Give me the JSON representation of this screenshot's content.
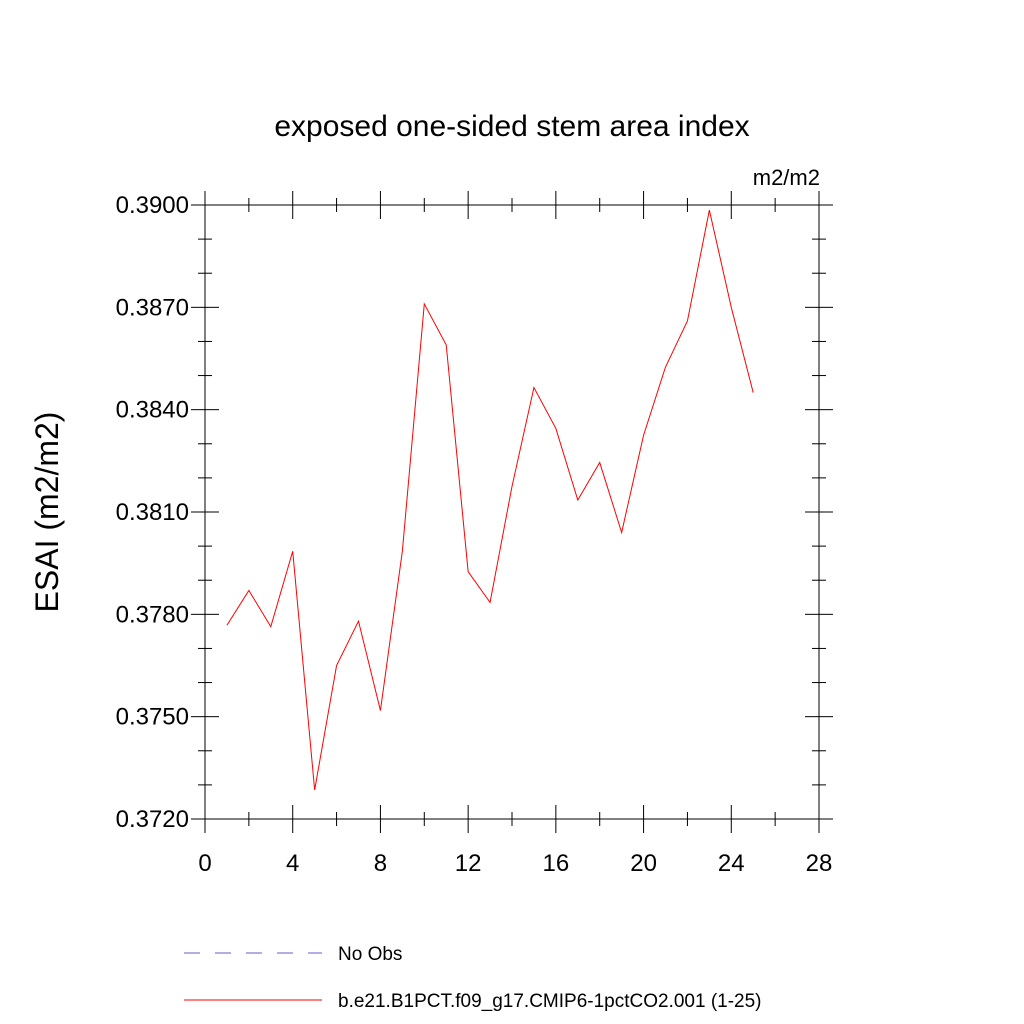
{
  "chart_data": {
    "type": "line",
    "title": "exposed one-sided stem area index",
    "units": "m2/m2",
    "ylabel": "ESAI  (m2/m2)",
    "xlabel": "",
    "xlim": [
      0,
      28
    ],
    "ylim": [
      0.372,
      0.39
    ],
    "x_ticks": [
      "0",
      "4",
      "8",
      "12",
      "16",
      "20",
      "24",
      "28"
    ],
    "y_ticks": [
      "0.3720",
      "0.3750",
      "0.3780",
      "0.3810",
      "0.3840",
      "0.3870",
      "0.3900"
    ],
    "grid": false,
    "legend_position": "bottom",
    "series": [
      {
        "name": "No Obs",
        "color": "#6a5acd",
        "dash": "dashed",
        "x": [],
        "values": []
      },
      {
        "name": "b.e21.B1PCT.f09_g17.CMIP6-1pctCO2.001 (1-25)",
        "color": "#ff0000",
        "dash": "solid",
        "x": [
          1,
          2,
          3,
          4,
          5,
          6,
          7,
          8,
          9,
          10,
          11,
          12,
          13,
          14,
          15,
          16,
          17,
          18,
          19,
          20,
          21,
          22,
          23,
          24,
          25
        ],
        "values": [
          0.37768,
          0.3787,
          0.37764,
          0.37985,
          0.37285,
          0.3765,
          0.3778,
          0.37518,
          0.37985,
          0.3871,
          0.3859,
          0.37925,
          0.37835,
          0.38175,
          0.38465,
          0.38345,
          0.38135,
          0.38245,
          0.3804,
          0.38325,
          0.38525,
          0.3866,
          0.38985,
          0.387,
          0.3845
        ]
      }
    ]
  }
}
